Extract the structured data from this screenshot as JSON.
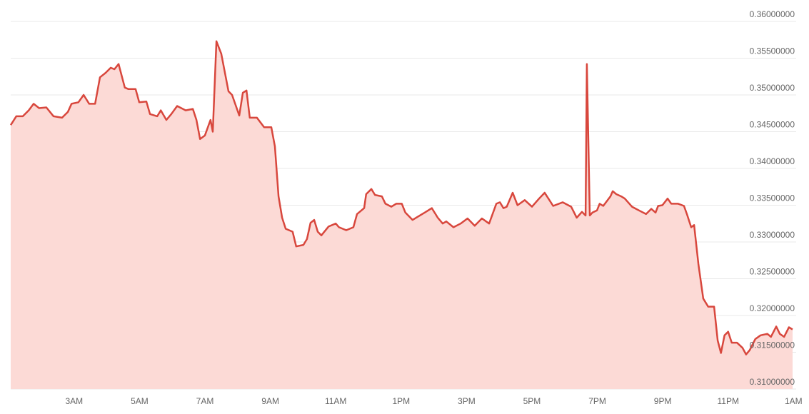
{
  "chart_data": {
    "type": "area",
    "color": "#d8473d",
    "fill_color": "#fcdad6",
    "grid": true,
    "xlim": [
      1.06,
      25.08
    ],
    "ylim": [
      0.31,
      0.36
    ],
    "xticks": [
      {
        "value": 3,
        "label": "3AM"
      },
      {
        "value": 5,
        "label": "5AM"
      },
      {
        "value": 7,
        "label": "7AM"
      },
      {
        "value": 9,
        "label": "9AM"
      },
      {
        "value": 11,
        "label": "11AM"
      },
      {
        "value": 13,
        "label": "1PM"
      },
      {
        "value": 15,
        "label": "3PM"
      },
      {
        "value": 17,
        "label": "5PM"
      },
      {
        "value": 19,
        "label": "7PM"
      },
      {
        "value": 21,
        "label": "9PM"
      },
      {
        "value": 23,
        "label": "11PM"
      },
      {
        "value": 25,
        "label": "1AM"
      }
    ],
    "yticks": [
      {
        "value": 0.31,
        "label": "0.31000000"
      },
      {
        "value": 0.315,
        "label": "0.31500000"
      },
      {
        "value": 0.32,
        "label": "0.32000000"
      },
      {
        "value": 0.325,
        "label": "0.32500000"
      },
      {
        "value": 0.33,
        "label": "0.33000000"
      },
      {
        "value": 0.335,
        "label": "0.33500000"
      },
      {
        "value": 0.34,
        "label": "0.34000000"
      },
      {
        "value": 0.345,
        "label": "0.34500000"
      },
      {
        "value": 0.35,
        "label": "0.35000000"
      },
      {
        "value": 0.355,
        "label": "0.35500000"
      },
      {
        "value": 0.36,
        "label": "0.36000000"
      }
    ],
    "x": [
      1.06,
      1.23,
      1.43,
      1.61,
      1.76,
      1.93,
      2.15,
      2.37,
      2.63,
      2.81,
      2.92,
      3.13,
      3.29,
      3.46,
      3.64,
      3.79,
      3.96,
      4.12,
      4.23,
      4.36,
      4.55,
      4.66,
      4.88,
      4.99,
      5.21,
      5.32,
      5.54,
      5.65,
      5.82,
      5.97,
      6.15,
      6.41,
      6.63,
      6.74,
      6.85,
      7.0,
      7.17,
      7.24,
      7.35,
      7.5,
      7.72,
      7.83,
      8.05,
      8.16,
      8.27,
      8.37,
      8.59,
      8.81,
      9.03,
      9.14,
      9.25,
      9.36,
      9.47,
      9.68,
      9.79,
      10.01,
      10.12,
      10.23,
      10.34,
      10.45,
      10.56,
      10.78,
      11.0,
      11.1,
      11.32,
      11.54,
      11.65,
      11.87,
      11.93,
      12.09,
      12.2,
      12.41,
      12.52,
      12.7,
      12.85,
      13.02,
      13.13,
      13.35,
      13.57,
      13.72,
      13.94,
      14.12,
      14.27,
      14.38,
      14.6,
      14.82,
      15.03,
      15.25,
      15.47,
      15.69,
      15.91,
      16.02,
      16.13,
      16.23,
      16.41,
      16.56,
      16.78,
      17.0,
      17.22,
      17.39,
      17.65,
      17.94,
      18.2,
      18.37,
      18.53,
      18.64,
      18.68,
      18.77,
      18.85,
      18.99,
      19.07,
      19.18,
      19.4,
      19.47,
      19.58,
      19.73,
      19.84,
      20.06,
      20.27,
      20.49,
      20.65,
      20.78,
      20.86,
      20.99,
      21.15,
      21.26,
      21.47,
      21.65,
      21.74,
      21.87,
      21.96,
      22.09,
      22.24,
      22.39,
      22.57,
      22.68,
      22.78,
      22.89,
      23.0,
      23.11,
      23.27,
      23.44,
      23.55,
      23.66,
      23.83,
      23.99,
      24.2,
      24.31,
      24.47,
      24.58,
      24.71,
      24.86,
      24.97
    ],
    "values": [
      0.3459,
      0.3471,
      0.3471,
      0.3479,
      0.3488,
      0.3482,
      0.3483,
      0.3471,
      0.3469,
      0.3477,
      0.3488,
      0.349,
      0.35,
      0.3488,
      0.3488,
      0.3524,
      0.353,
      0.3537,
      0.3535,
      0.3542,
      0.351,
      0.3508,
      0.3508,
      0.349,
      0.3491,
      0.3474,
      0.3471,
      0.3479,
      0.3466,
      0.3474,
      0.3485,
      0.3479,
      0.3481,
      0.3466,
      0.344,
      0.3445,
      0.3466,
      0.345,
      0.3573,
      0.3556,
      0.3505,
      0.35,
      0.3472,
      0.3503,
      0.3506,
      0.3469,
      0.3469,
      0.3456,
      0.3456,
      0.343,
      0.3362,
      0.3333,
      0.3318,
      0.3314,
      0.3294,
      0.3296,
      0.3304,
      0.3326,
      0.333,
      0.3314,
      0.3309,
      0.3321,
      0.3325,
      0.332,
      0.3316,
      0.332,
      0.3338,
      0.3346,
      0.3365,
      0.3372,
      0.3364,
      0.3362,
      0.3352,
      0.3348,
      0.3352,
      0.3352,
      0.334,
      0.333,
      0.3336,
      0.334,
      0.3346,
      0.3333,
      0.3325,
      0.3328,
      0.332,
      0.3325,
      0.3332,
      0.3322,
      0.3332,
      0.3325,
      0.3352,
      0.3354,
      0.3346,
      0.3348,
      0.3367,
      0.335,
      0.3357,
      0.3348,
      0.3359,
      0.3367,
      0.3349,
      0.3354,
      0.3348,
      0.3333,
      0.3341,
      0.3336,
      0.3542,
      0.3336,
      0.334,
      0.3343,
      0.3352,
      0.3349,
      0.3362,
      0.3369,
      0.3365,
      0.3362,
      0.3359,
      0.3348,
      0.3343,
      0.3338,
      0.3345,
      0.334,
      0.3349,
      0.335,
      0.3359,
      0.3352,
      0.3352,
      0.3349,
      0.3338,
      0.332,
      0.3323,
      0.327,
      0.3223,
      0.3212,
      0.3212,
      0.3166,
      0.3149,
      0.3173,
      0.3178,
      0.3163,
      0.3163,
      0.3156,
      0.3147,
      0.3153,
      0.3168,
      0.3173,
      0.3175,
      0.3171,
      0.3185,
      0.3175,
      0.3171,
      0.3184,
      0.3181
    ]
  }
}
